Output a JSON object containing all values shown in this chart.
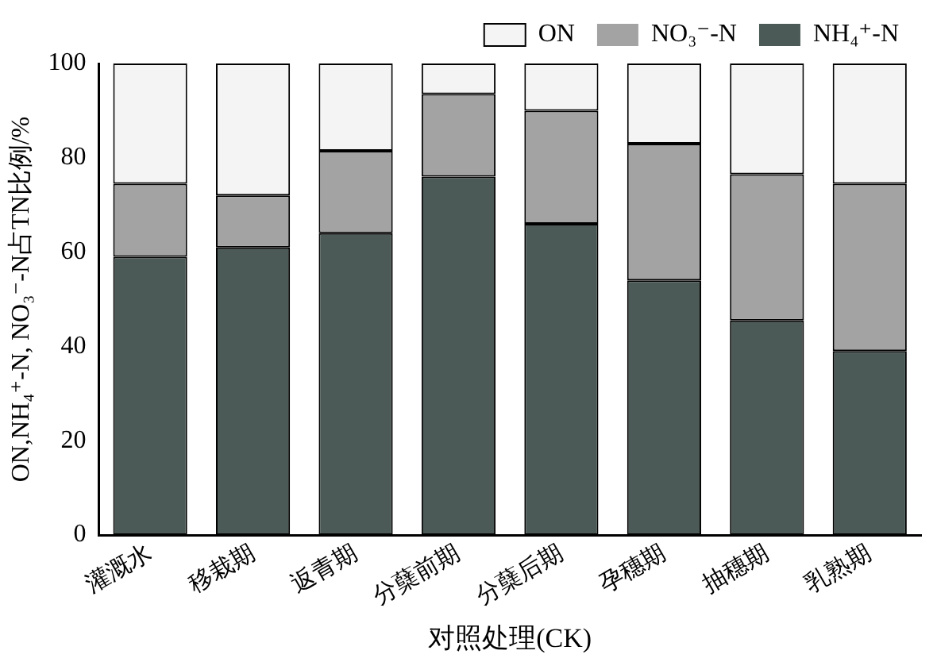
{
  "chart_data": {
    "type": "bar",
    "stacked": true,
    "xlabel": "对照处理(CK)",
    "ylabel": "ON,NH₄⁺-N, NO₃⁻-N占TN比例/%",
    "categories": [
      "灌溉水",
      "移栽期",
      "返青期",
      "分蘖前期",
      "分蘖后期",
      "孕穗期",
      "抽穗期",
      "乳熟期"
    ],
    "series": [
      {
        "name": "NH₄⁺-N",
        "color": "#4b5a56",
        "values": [
          59,
          61,
          64,
          76,
          66,
          54,
          45.5,
          39
        ]
      },
      {
        "name": "NO₃⁻-N",
        "color": "#a3a3a3",
        "values": [
          15.5,
          11,
          17.5,
          17.5,
          24,
          29,
          31,
          35.5
        ]
      },
      {
        "name": "ON",
        "color": "#f4f4f4",
        "values": [
          25.5,
          28,
          18.5,
          6.5,
          10,
          17,
          23.5,
          25.5
        ]
      }
    ],
    "ylim": [
      0,
      100
    ],
    "yticks": [
      0,
      20,
      40,
      60,
      80,
      100
    ],
    "grid": false,
    "legend": "top right"
  }
}
